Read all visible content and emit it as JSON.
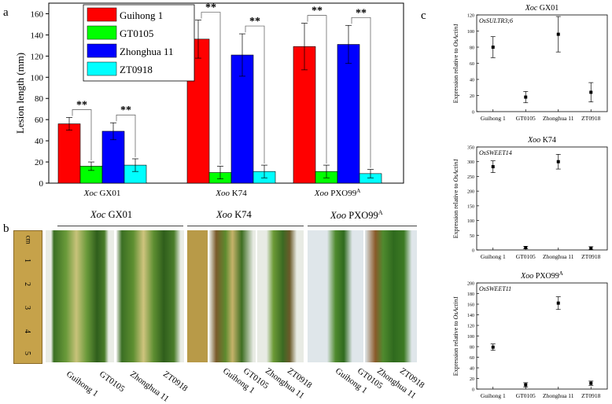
{
  "panels": {
    "a": "a",
    "b": "b",
    "c": "c"
  },
  "chart_data": [
    {
      "type": "bar",
      "panel": "a",
      "ylabel": "Lesion length (mm)",
      "ylim": [
        0,
        170
      ],
      "yticks": [
        "0",
        "20",
        "40",
        "60",
        "80",
        "100",
        "120",
        "140",
        "160"
      ],
      "yticks_values": [
        0,
        20,
        40,
        60,
        80,
        100,
        120,
        140,
        160
      ],
      "categories": [
        {
          "prefix": "Xoc",
          "name": " GX01",
          "sup": ""
        },
        {
          "prefix": "Xoo",
          "name": " K74",
          "sup": ""
        },
        {
          "prefix": "Xoo",
          "name": " PXO99",
          "sup": "A"
        }
      ],
      "series": [
        {
          "name": "Guihong 1",
          "color": "#ff0000",
          "values": [
            56,
            136,
            129
          ],
          "errors": [
            6,
            18,
            22
          ]
        },
        {
          "name": "GT0105",
          "color": "#00ff00",
          "values": [
            16,
            10,
            11
          ],
          "errors": [
            4,
            6,
            6
          ]
        },
        {
          "name": "Zhonghua 11",
          "color": "#0000ff",
          "values": [
            49,
            121,
            131
          ],
          "errors": [
            8,
            20,
            18
          ]
        },
        {
          "name": "ZT0918",
          "color": "#00ffff",
          "values": [
            17,
            11,
            9
          ],
          "errors": [
            6,
            6,
            4
          ]
        }
      ],
      "significance": "**",
      "legend_position": "top-left"
    },
    {
      "type": "scatter",
      "panel": "c",
      "title_prefix": "Xoc",
      "title": " GX01",
      "title_sup": "",
      "gene": "OsSULTR3;6",
      "ylabel": "Expression relative to ",
      "ylabel_gene": "OsActin1",
      "ylim": [
        0,
        120
      ],
      "yticks": [
        "0",
        "20",
        "40",
        "60",
        "80",
        "100",
        "120"
      ],
      "yticks_values": [
        0,
        20,
        40,
        60,
        80,
        100,
        120
      ],
      "categories": [
        "Guihong 1",
        "GT0105",
        "Zhonghua 11",
        "ZT0918"
      ],
      "values": [
        80,
        18,
        96,
        24
      ],
      "errors": [
        13,
        7,
        22,
        12
      ]
    },
    {
      "type": "scatter",
      "panel": "c",
      "title_prefix": "Xoo",
      "title": " K74",
      "title_sup": "",
      "gene": "OsSWEET14",
      "ylabel": "Expression relative to ",
      "ylabel_gene": "OsActin1",
      "ylim": [
        0,
        350
      ],
      "yticks": [
        "0",
        "50",
        "100",
        "150",
        "200",
        "250",
        "300",
        "350"
      ],
      "yticks_values": [
        0,
        50,
        100,
        150,
        200,
        250,
        300,
        350
      ],
      "categories": [
        "Guihong 1",
        "GT0105",
        "Zhonghua 11",
        "ZT0918"
      ],
      "values": [
        283,
        8,
        300,
        6
      ],
      "errors": [
        20,
        4,
        25,
        5
      ]
    },
    {
      "type": "scatter",
      "panel": "c",
      "title_prefix": "Xoo",
      "title": " PXO99",
      "title_sup": "A",
      "gene": "OsSWEET11",
      "ylabel": "Expression relative to ",
      "ylabel_gene": "OsActin1",
      "ylim": [
        0,
        200
      ],
      "yticks": [
        "0",
        "20",
        "40",
        "60",
        "80",
        "100",
        "120",
        "140",
        "160",
        "180",
        "200"
      ],
      "yticks_values": [
        0,
        20,
        40,
        60,
        80,
        100,
        120,
        140,
        160,
        180,
        200
      ],
      "categories": [
        "Guihong 1",
        "GT0105",
        "Zhonghua 11",
        "ZT0918"
      ],
      "values": [
        79,
        8,
        162,
        11
      ],
      "errors": [
        6,
        4,
        12,
        4
      ]
    }
  ],
  "photo": {
    "groups": [
      {
        "prefix": "Xoc",
        "name": " GX01",
        "sup": ""
      },
      {
        "prefix": "Xoo",
        "name": " K74",
        "sup": ""
      },
      {
        "prefix": "Xoo",
        "name": " PXO99",
        "sup": "A"
      }
    ],
    "ruler_marks": [
      "cm",
      "1",
      "2",
      "3",
      "4",
      "5"
    ],
    "leaf_labels": [
      "Guihong 1",
      "GT0105",
      "Zhonghua 11",
      "ZT0918"
    ]
  }
}
